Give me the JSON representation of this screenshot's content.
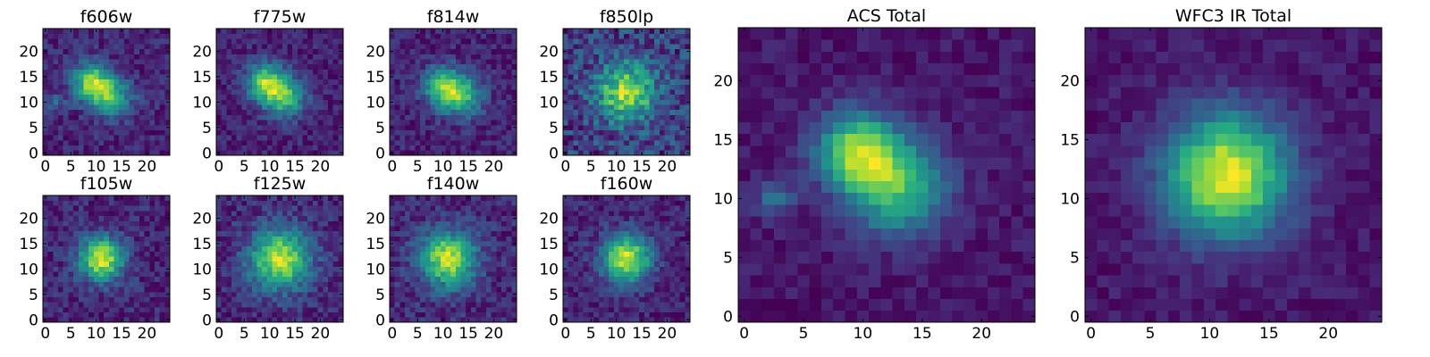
{
  "chart_data": [
    {
      "type": "heatmap",
      "title": "f606w",
      "colormap": "viridis",
      "grid_size": 25,
      "xlim": [
        -0.5,
        24.5
      ],
      "ylim": [
        -0.5,
        24.5
      ],
      "xticks": [
        0,
        5,
        10,
        15,
        20
      ],
      "yticks": [
        0,
        5,
        10,
        15,
        20
      ],
      "peaks": [
        {
          "x": 9,
          "y": 14,
          "amplitude": 1.0,
          "sigma": 2.6
        },
        {
          "x": 13,
          "y": 11,
          "amplitude": 0.8,
          "sigma": 2.8
        },
        {
          "x": 2,
          "y": 10,
          "amplitude": 0.35,
          "sigma": 1.3
        }
      ],
      "background_level": 0.33,
      "noise_level": 0.32,
      "seed": 11
    },
    {
      "type": "heatmap",
      "title": "f775w",
      "colormap": "viridis",
      "grid_size": 25,
      "xlim": [
        -0.5,
        24.5
      ],
      "ylim": [
        -0.5,
        24.5
      ],
      "xticks": [
        0,
        5,
        10,
        15,
        20
      ],
      "yticks": [
        0,
        5,
        10,
        15,
        20
      ],
      "peaks": [
        {
          "x": 9,
          "y": 14,
          "amplitude": 1.0,
          "sigma": 2.6
        },
        {
          "x": 13,
          "y": 11,
          "amplitude": 0.9,
          "sigma": 2.8
        }
      ],
      "background_level": 0.33,
      "noise_level": 0.3,
      "seed": 23
    },
    {
      "type": "heatmap",
      "title": "f814w",
      "colormap": "viridis",
      "grid_size": 25,
      "xlim": [
        -0.5,
        24.5
      ],
      "ylim": [
        -0.5,
        24.5
      ],
      "xticks": [
        0,
        5,
        10,
        15,
        20
      ],
      "yticks": [
        0,
        5,
        10,
        15,
        20
      ],
      "peaks": [
        {
          "x": 10,
          "y": 13,
          "amplitude": 1.0,
          "sigma": 2.7
        },
        {
          "x": 14,
          "y": 11,
          "amplitude": 0.8,
          "sigma": 2.8
        }
      ],
      "background_level": 0.32,
      "noise_level": 0.34,
      "seed": 37
    },
    {
      "type": "heatmap",
      "title": "f850lp",
      "colormap": "viridis",
      "grid_size": 25,
      "xlim": [
        -0.5,
        24.5
      ],
      "ylim": [
        -0.5,
        24.5
      ],
      "xticks": [
        0,
        5,
        10,
        15,
        20
      ],
      "yticks": [
        0,
        5,
        10,
        15,
        20
      ],
      "peaks": [
        {
          "x": 12,
          "y": 12,
          "amplitude": 0.9,
          "sigma": 4.0
        }
      ],
      "background_level": 0.42,
      "noise_level": 0.5,
      "seed": 41
    },
    {
      "type": "heatmap",
      "title": "f105w",
      "colormap": "viridis",
      "grid_size": 25,
      "xlim": [
        -0.5,
        24.5
      ],
      "ylim": [
        -0.5,
        24.5
      ],
      "xticks": [
        0,
        5,
        10,
        15,
        20
      ],
      "yticks": [
        0,
        5,
        10,
        15,
        20
      ],
      "peaks": [
        {
          "x": 11,
          "y": 12,
          "amplitude": 1.0,
          "sigma": 3.0
        }
      ],
      "background_level": 0.32,
      "noise_level": 0.28,
      "seed": 53
    },
    {
      "type": "heatmap",
      "title": "f125w",
      "colormap": "viridis",
      "grid_size": 25,
      "xlim": [
        -0.5,
        24.5
      ],
      "ylim": [
        -0.5,
        24.5
      ],
      "xticks": [
        0,
        5,
        10,
        15,
        20
      ],
      "yticks": [
        0,
        5,
        10,
        15,
        20
      ],
      "peaks": [
        {
          "x": 12,
          "y": 12,
          "amplitude": 1.0,
          "sigma": 4.2
        }
      ],
      "background_level": 0.42,
      "noise_level": 0.3,
      "seed": 67
    },
    {
      "type": "heatmap",
      "title": "f140w",
      "colormap": "viridis",
      "grid_size": 25,
      "xlim": [
        -0.5,
        24.5
      ],
      "ylim": [
        -0.5,
        24.5
      ],
      "xticks": [
        0,
        5,
        10,
        15,
        20
      ],
      "yticks": [
        0,
        5,
        10,
        15,
        20
      ],
      "peaks": [
        {
          "x": 11,
          "y": 12,
          "amplitude": 1.0,
          "sigma": 3.8
        }
      ],
      "background_level": 0.4,
      "noise_level": 0.3,
      "seed": 71
    },
    {
      "type": "heatmap",
      "title": "f160w",
      "colormap": "viridis",
      "grid_size": 25,
      "xlim": [
        -0.5,
        24.5
      ],
      "ylim": [
        -0.5,
        24.5
      ],
      "xticks": [
        0,
        5,
        10,
        15,
        20
      ],
      "yticks": [
        0,
        5,
        10,
        15,
        20
      ],
      "peaks": [
        {
          "x": 12,
          "y": 12,
          "amplitude": 1.0,
          "sigma": 3.3
        }
      ],
      "background_level": 0.32,
      "noise_level": 0.26,
      "seed": 83
    },
    {
      "type": "heatmap",
      "title": "ACS Total",
      "colormap": "viridis",
      "grid_size": 25,
      "xlim": [
        -0.5,
        24.5
      ],
      "ylim": [
        -0.5,
        24.5
      ],
      "xticks": [
        0,
        5,
        10,
        15,
        20
      ],
      "yticks": [
        0,
        5,
        10,
        15,
        20
      ],
      "peaks": [
        {
          "x": 9.5,
          "y": 14,
          "amplitude": 1.0,
          "sigma": 2.4
        },
        {
          "x": 13,
          "y": 11,
          "amplitude": 0.85,
          "sigma": 2.8
        },
        {
          "x": 2.5,
          "y": 10,
          "amplitude": 0.4,
          "sigma": 1.2
        }
      ],
      "background_level": 0.3,
      "noise_level": 0.18,
      "seed": 97
    },
    {
      "type": "heatmap",
      "title": "WFC3 IR Total",
      "colormap": "viridis",
      "grid_size": 25,
      "xlim": [
        -0.5,
        24.5
      ],
      "ylim": [
        -0.5,
        24.5
      ],
      "xticks": [
        0,
        5,
        10,
        15,
        20
      ],
      "yticks": [
        0,
        5,
        10,
        15,
        20
      ],
      "peaks": [
        {
          "x": 11.5,
          "y": 12,
          "amplitude": 1.0,
          "sigma": 3.6
        }
      ],
      "background_level": 0.32,
      "noise_level": 0.14,
      "seed": 101
    }
  ]
}
